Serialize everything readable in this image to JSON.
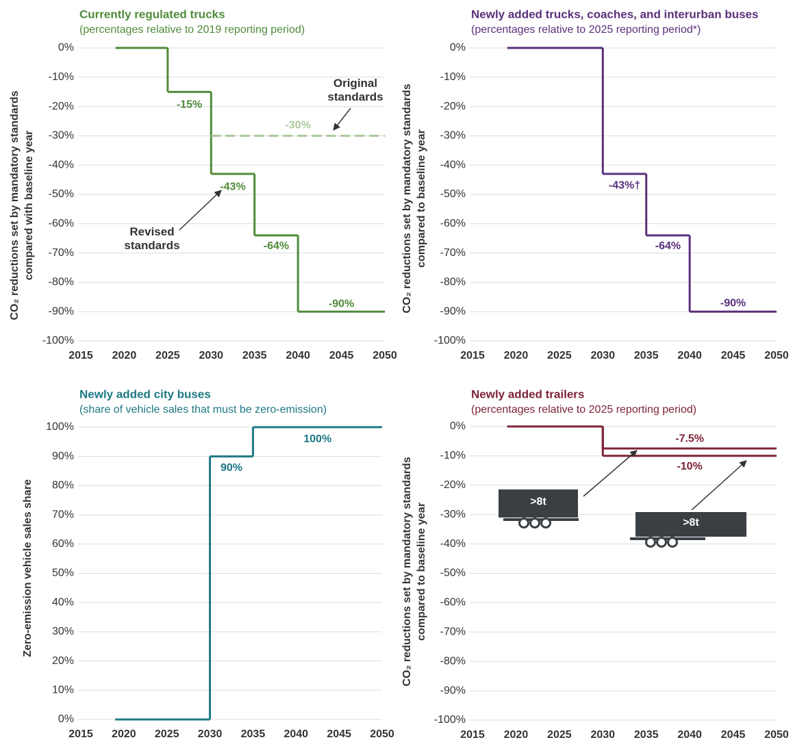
{
  "chart_data": [
    {
      "type": "step",
      "title": "Currently regulated trucks",
      "subtitle": "(percentages relative to 2019 reporting period)",
      "y_label": "CO₂ reductions set by mandatory standards compared with baseline year",
      "xlim": [
        2015,
        2050
      ],
      "xticks": [
        2015,
        2020,
        2025,
        2030,
        2035,
        2040,
        2045,
        2050
      ],
      "ylim": [
        -100,
        0
      ],
      "yticks": [
        {
          "value": 0,
          "label": "0%"
        },
        {
          "value": -10,
          "label": "-10%"
        },
        {
          "value": -20,
          "label": "-20%"
        },
        {
          "value": -30,
          "label": "-30%"
        },
        {
          "value": -40,
          "label": "-40%"
        },
        {
          "value": -50,
          "label": "-50%"
        },
        {
          "value": -60,
          "label": "-60%"
        },
        {
          "value": -70,
          "label": "-70%"
        },
        {
          "value": -80,
          "label": "-80%"
        },
        {
          "value": -90,
          "label": "-90%"
        },
        {
          "value": -100,
          "label": "-100%"
        }
      ],
      "grid": true,
      "series": [
        {
          "name": "Revised standards",
          "color": "#4f8a3a",
          "dash": false,
          "x": [
            2019,
            2025,
            2030,
            2035,
            2040
          ],
          "values": [
            0,
            -15,
            -43,
            -64,
            -90
          ],
          "value_labels": [
            null,
            "-15%",
            "-43%",
            "-64%",
            "-90%"
          ]
        },
        {
          "name": "Original standards",
          "color": "#a8c89a",
          "dash": true,
          "x": [
            2030
          ],
          "values": [
            -30
          ],
          "value_labels": [
            "-30%"
          ]
        }
      ]
    },
    {
      "type": "step",
      "title": "Newly added trucks, coaches, and interurban buses",
      "subtitle": "(percentages relative to 2025 reporting period*)",
      "y_label": "CO₂ reductions set by mandatory standards compared to baseline year",
      "xlim": [
        2015,
        2050
      ],
      "xticks": [
        2015,
        2020,
        2025,
        2030,
        2035,
        2040,
        2045,
        2050
      ],
      "ylim": [
        -100,
        0
      ],
      "yticks": [
        {
          "value": 0,
          "label": "0%"
        },
        {
          "value": -10,
          "label": "-10%"
        },
        {
          "value": -20,
          "label": "-20%"
        },
        {
          "value": -30,
          "label": "-30%"
        },
        {
          "value": -40,
          "label": "-40%"
        },
        {
          "value": -50,
          "label": "-50%"
        },
        {
          "value": -60,
          "label": "-60%"
        },
        {
          "value": -70,
          "label": "-70%"
        },
        {
          "value": -80,
          "label": "-80%"
        },
        {
          "value": -90,
          "label": "-90%"
        },
        {
          "value": -100,
          "label": "-100%"
        }
      ],
      "grid": true,
      "series": [
        {
          "color": "#5a2f7a",
          "dash": false,
          "x": [
            2019,
            2030,
            2035,
            2040
          ],
          "values": [
            0,
            -43,
            -64,
            -90
          ],
          "value_labels": [
            null,
            "-43%†",
            "-64%",
            "-90%"
          ]
        }
      ]
    },
    {
      "type": "step",
      "title": "Newly added city buses",
      "subtitle": "(share of vehicle sales that must be zero-emission)",
      "y_label": "Zero-emission vehicle sales share",
      "xlim": [
        2015,
        2050
      ],
      "xticks": [
        2015,
        2020,
        2025,
        2030,
        2035,
        2040,
        2045,
        2050
      ],
      "ylim": [
        0,
        100
      ],
      "yticks": [
        {
          "value": 100,
          "label": "100%"
        },
        {
          "value": 90,
          "label": "90%"
        },
        {
          "value": 80,
          "label": "80%"
        },
        {
          "value": 70,
          "label": "70%"
        },
        {
          "value": 60,
          "label": "60%"
        },
        {
          "value": 50,
          "label": "50%"
        },
        {
          "value": 40,
          "label": "40%"
        },
        {
          "value": 30,
          "label": "30%"
        },
        {
          "value": 20,
          "label": "20%"
        },
        {
          "value": 10,
          "label": "10%"
        },
        {
          "value": 0,
          "label": "0%"
        }
      ],
      "grid": true,
      "series": [
        {
          "color": "#1d7884",
          "dash": false,
          "x": [
            2019,
            2030,
            2035
          ],
          "values": [
            0,
            90,
            100
          ],
          "value_labels": [
            null,
            "90%",
            "100%"
          ]
        }
      ]
    },
    {
      "type": "step",
      "title": "Newly added trailers",
      "subtitle": "(percentages relative to 2025 reporting period)",
      "y_label": "CO₂ reductions set by mandatory standards compared to baseline year",
      "xlim": [
        2015,
        2050
      ],
      "xticks": [
        2015,
        2020,
        2025,
        2030,
        2035,
        2040,
        2045,
        2050
      ],
      "ylim": [
        -100,
        0
      ],
      "yticks": [
        {
          "value": 0,
          "label": "0%"
        },
        {
          "value": -10,
          "label": "-10%"
        },
        {
          "value": -20,
          "label": "-20%"
        },
        {
          "value": -30,
          "label": "-30%"
        },
        {
          "value": -40,
          "label": "-40%"
        },
        {
          "value": -50,
          "label": "-50%"
        },
        {
          "value": -60,
          "label": "-60%"
        },
        {
          "value": -70,
          "label": "-70%"
        },
        {
          "value": -80,
          "label": "-80%"
        },
        {
          "value": -90,
          "label": "-90%"
        },
        {
          "value": -100,
          "label": "-100%"
        }
      ],
      "grid": true,
      "series": [
        {
          "color": "#7d2336",
          "dash": false,
          "x": [
            2019,
            2030
          ],
          "values": [
            0,
            -7.5
          ],
          "value_labels": [
            null,
            "-7.5%"
          ]
        },
        {
          "color": "#7d2336",
          "dash": false,
          "x": [
            2019,
            2030
          ],
          "values": [
            0,
            -10
          ],
          "value_labels": [
            null,
            "-10%"
          ]
        }
      ],
      "annotations": [
        ">8t",
        ">8t"
      ]
    }
  ]
}
